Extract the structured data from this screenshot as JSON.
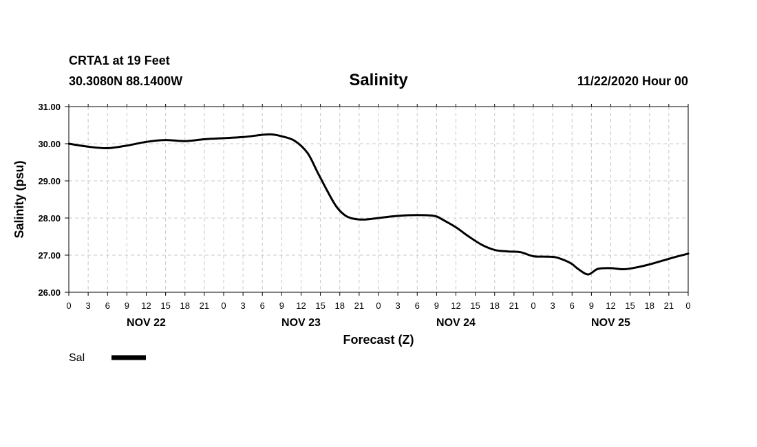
{
  "header": {
    "station": "CRTA1 at 19 Feet",
    "coords": "30.3080N 88.1400W",
    "title": "Salinity",
    "datetime": "11/22/2020 Hour 00"
  },
  "colors": {
    "line": "#000000",
    "grid": "#c8c8c8",
    "frame": "#000000",
    "background": "#ffffff"
  },
  "chart_data": {
    "type": "line",
    "title": "Salinity",
    "xlabel": "Forecast (Z)",
    "ylabel": "Salinity (psu)",
    "ylim": [
      26.0,
      31.0
    ],
    "xlim": [
      0,
      96
    ],
    "x_unit": "forecast hour",
    "yticks": [
      "26.00",
      "27.00",
      "28.00",
      "29.00",
      "30.00",
      "31.00"
    ],
    "ytick_values": [
      26,
      27,
      28,
      29,
      30,
      31
    ],
    "xtick_labels": [
      "0",
      "3",
      "6",
      "9",
      "12",
      "15",
      "18",
      "21",
      "0",
      "3",
      "6",
      "9",
      "12",
      "15",
      "18",
      "21",
      "0",
      "3",
      "6",
      "9",
      "12",
      "15",
      "18",
      "21",
      "0",
      "3",
      "6",
      "9",
      "12",
      "15",
      "18",
      "21",
      "0"
    ],
    "day_labels": [
      {
        "hour": 12,
        "label": "NOV 22"
      },
      {
        "hour": 36,
        "label": "NOV 23"
      },
      {
        "hour": 60,
        "label": "NOV 24"
      },
      {
        "hour": 84,
        "label": "NOV 25"
      }
    ],
    "grid": true,
    "legend_position": "bottom-left",
    "series": [
      {
        "name": "Sal",
        "x": [
          0,
          3,
          6,
          9,
          12,
          15,
          18,
          21,
          24,
          27,
          30,
          31.5,
          33,
          35,
          37,
          38.5,
          40,
          41.5,
          43,
          44.5,
          46,
          48,
          50,
          52,
          54,
          56,
          57,
          58,
          60,
          62,
          64,
          66,
          68,
          70,
          72,
          74,
          75.5,
          77,
          78,
          79,
          80.5,
          82,
          84,
          86,
          88,
          90,
          92,
          94,
          96
        ],
        "values": [
          30.0,
          29.92,
          29.88,
          29.95,
          30.05,
          30.1,
          30.07,
          30.12,
          30.15,
          30.18,
          30.24,
          30.25,
          30.2,
          30.08,
          29.75,
          29.25,
          28.75,
          28.3,
          28.05,
          27.97,
          27.96,
          28.0,
          28.04,
          28.07,
          28.08,
          28.07,
          28.04,
          27.95,
          27.75,
          27.5,
          27.28,
          27.14,
          27.1,
          27.08,
          26.97,
          26.96,
          26.94,
          26.85,
          26.76,
          26.62,
          26.48,
          26.63,
          26.65,
          26.62,
          26.67,
          26.75,
          26.85,
          26.95,
          27.04
        ]
      }
    ]
  }
}
